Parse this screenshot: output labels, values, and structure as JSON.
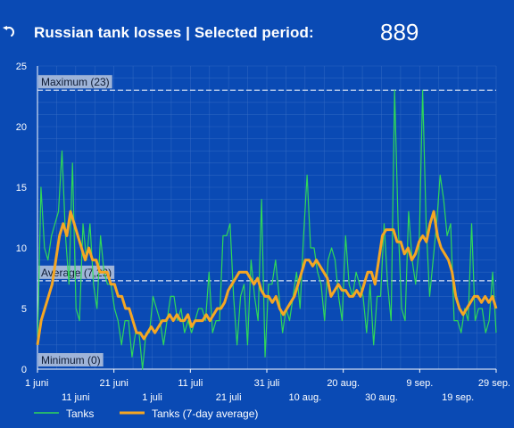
{
  "header": {
    "back_icon": "undo-arrow-icon",
    "title": "Russian tank losses | Selected period:",
    "total": "889"
  },
  "colors": {
    "background": "#0a4ab4",
    "daily_line": "#2fd858",
    "average_line": "#f5a623",
    "grid": "#3a6fc6",
    "reference_line": "#dfe7f5"
  },
  "chart_data": {
    "type": "line",
    "title": "Russian tank losses | Selected period:",
    "xlabel": "",
    "ylabel": "",
    "ylim": [
      0,
      25
    ],
    "yticks": [
      "0",
      "5",
      "10",
      "15",
      "20",
      "25"
    ],
    "grid": true,
    "x_start": "1 juni",
    "x_end": "29 sep.",
    "xticks_row1": [
      {
        "day": 0,
        "label": "1 juni"
      },
      {
        "day": 20,
        "label": "21 juni"
      },
      {
        "day": 40,
        "label": "11 juli"
      },
      {
        "day": 60,
        "label": "31 juli"
      },
      {
        "day": 80,
        "label": "20 aug."
      },
      {
        "day": 100,
        "label": "9 sep."
      },
      {
        "day": 120,
        "label": "29 sep."
      }
    ],
    "xticks_row2": [
      {
        "day": 10,
        "label": "11 juni"
      },
      {
        "day": 30,
        "label": "1 juli"
      },
      {
        "day": 50,
        "label": "21 juli"
      },
      {
        "day": 70,
        "label": "10 aug."
      },
      {
        "day": 90,
        "label": "30 aug."
      },
      {
        "day": 110,
        "label": "19 sep."
      }
    ],
    "reference_lines": [
      {
        "label": "Maximum (23)",
        "value": 23
      },
      {
        "label": "Average (7,29)",
        "value": 7.29
      },
      {
        "label": "Minimum (0)",
        "value": 0
      }
    ],
    "legend_position": "bottom-left",
    "series": [
      {
        "name": "Tanks",
        "values": [
          2,
          15,
          10,
          9,
          11,
          12,
          13,
          18,
          11,
          7,
          17,
          5,
          4,
          12,
          9,
          12,
          7,
          5,
          11,
          8,
          7,
          7,
          5,
          4,
          2,
          4,
          4,
          1,
          3,
          3,
          0,
          3,
          3,
          6,
          5,
          4,
          2,
          4,
          6,
          6,
          4,
          5,
          3,
          4,
          3,
          4,
          5,
          5,
          4,
          8,
          3,
          4,
          4,
          11,
          11,
          12,
          6,
          2,
          6,
          7,
          2,
          9,
          6,
          4,
          14,
          1,
          7,
          7,
          9,
          6,
          3,
          5,
          4,
          6,
          8,
          5,
          11,
          16,
          10,
          10,
          8,
          7,
          4,
          9,
          10,
          9,
          6,
          4,
          11,
          7,
          6,
          8,
          7,
          6,
          3,
          7,
          2,
          6,
          6,
          12,
          7,
          4,
          23,
          12,
          5,
          4,
          13,
          9,
          7,
          10,
          23,
          12,
          6,
          9,
          12,
          16,
          14,
          11,
          12,
          4,
          4,
          3,
          5,
          4,
          12,
          4,
          5,
          5,
          3,
          4,
          8,
          3
        ]
      },
      {
        "name": "Tanks (7-day average)",
        "values": [
          2,
          4,
          5,
          6,
          7,
          9,
          11,
          12,
          11,
          13,
          12,
          11,
          10,
          9,
          10,
          9,
          9,
          8,
          8,
          8,
          7,
          7,
          6,
          6,
          5,
          5,
          4,
          3,
          3,
          2.5,
          3,
          3.5,
          3,
          3.5,
          4,
          4,
          4.5,
          4,
          4.5,
          4,
          4,
          4.5,
          3.5,
          4,
          4,
          4,
          4.5,
          4,
          4.5,
          5,
          5,
          5.5,
          6.5,
          7,
          7.5,
          8,
          8,
          8,
          7.5,
          7,
          7.5,
          6.5,
          6,
          6,
          5.5,
          6,
          5,
          4.5,
          5,
          5.5,
          6,
          7,
          8,
          9,
          9,
          8.5,
          9,
          8.5,
          8,
          7.5,
          6,
          6.5,
          7,
          6.5,
          6.5,
          6,
          6,
          6.5,
          6,
          7,
          8,
          8,
          7,
          9,
          11,
          11.5,
          11.5,
          11.5,
          10.5,
          10.5,
          9.5,
          10,
          9,
          9.5,
          10.5,
          11,
          10.5,
          12,
          13,
          11,
          10,
          9.5,
          9,
          8,
          6,
          5,
          4.5,
          5,
          5.5,
          6,
          6,
          5.5,
          6,
          5.5,
          6,
          5
        ]
      }
    ]
  },
  "legend": {
    "items": [
      {
        "label": "Tanks",
        "color": "#2fd858"
      },
      {
        "label": "Tanks (7-day average)",
        "color": "#f5a623"
      }
    ]
  }
}
